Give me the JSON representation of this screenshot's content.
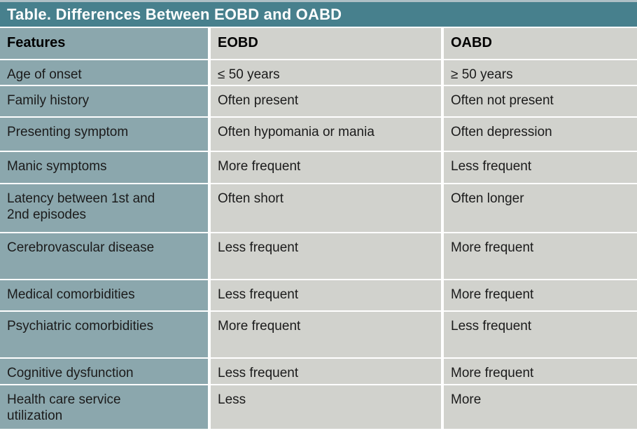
{
  "title": "Table. Differences Between EOBD and OABD",
  "columns": [
    "Features",
    "EOBD",
    "OABD"
  ],
  "rows": [
    {
      "feature": "Age of onset",
      "eobd": "≤ 50 years",
      "oabd": "≥ 50 years"
    },
    {
      "feature": "Family history",
      "eobd": "Often present",
      "oabd": "Often not present"
    },
    {
      "feature": "Presenting symptom",
      "eobd": "Often hypomania or mania",
      "oabd": "Often depression"
    },
    {
      "feature": "Manic symptoms",
      "eobd": "More frequent",
      "oabd": "Less frequent"
    },
    {
      "feature": "Latency between 1st and\n2nd episodes",
      "eobd": "Often short",
      "oabd": "Often longer"
    },
    {
      "feature": "Cerebrovascular disease",
      "eobd": "Less frequent",
      "oabd": "More frequent"
    },
    {
      "feature": "Medical comorbidities",
      "eobd": "Less frequent",
      "oabd": "More frequent"
    },
    {
      "feature": "Psychiatric comorbidities",
      "eobd": "More frequent",
      "oabd": "Less frequent"
    },
    {
      "feature": "Cognitive dysfunction",
      "eobd": "Less frequent",
      "oabd": "More frequent"
    },
    {
      "feature": "Health care service\nutilization",
      "eobd": "Less",
      "oabd": "More"
    }
  ],
  "colors": {
    "title_bar": "#47808d",
    "top_strip": "#aec0c6",
    "feature_cell": "#8ba7ad",
    "value_cell": "#d1d2cd",
    "separator": "#ffffff",
    "title_text": "#ffffff",
    "body_text": "#1b1b1b"
  }
}
